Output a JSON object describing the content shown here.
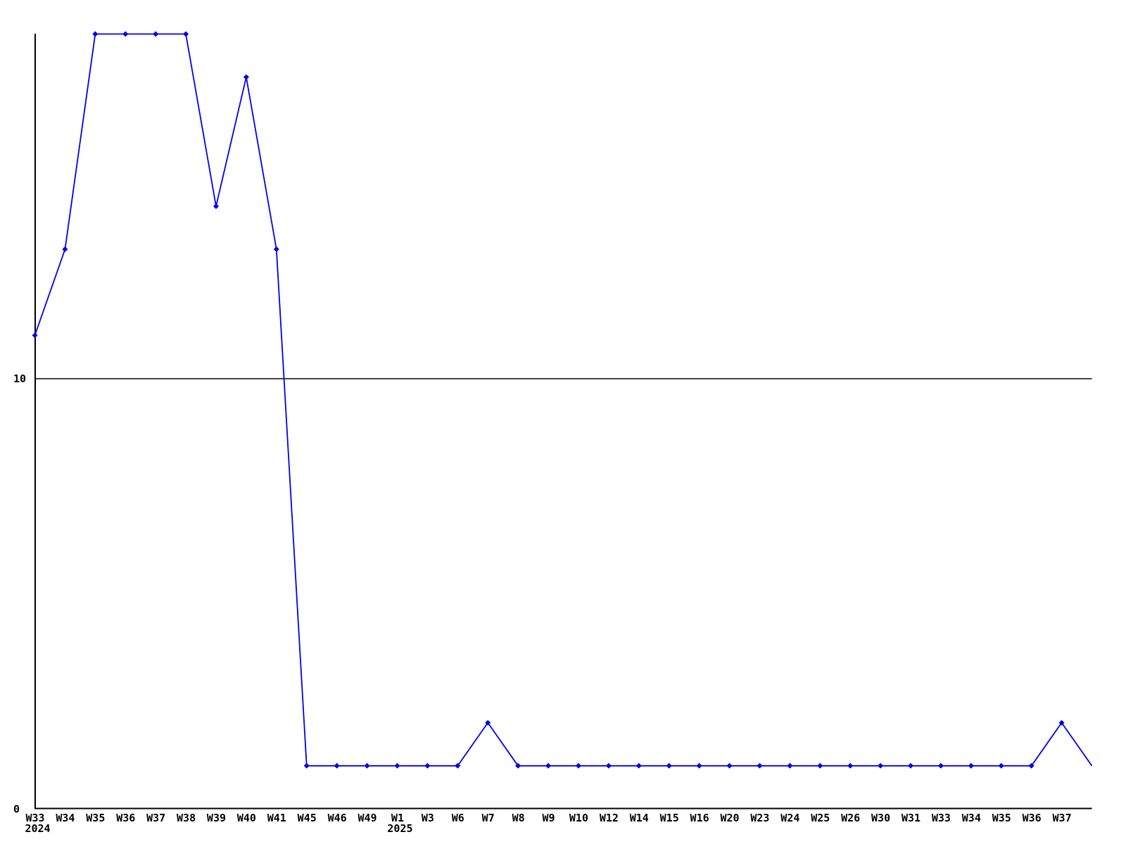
{
  "page": {
    "background_color": "#ffffff"
  },
  "chart_data": {
    "type": "line",
    "title": "",
    "xlabel": "",
    "ylabel": "",
    "ylim": [
      0,
      18.3
    ],
    "grid": false,
    "legend": "none",
    "line_color": "#0000ee",
    "axis_color": "#000000",
    "marker": "diamond",
    "yticks": [
      {
        "value": 0,
        "label": "0"
      },
      {
        "value": 10,
        "label": "10"
      }
    ],
    "reference_line_value": 10,
    "categories": [
      "W33",
      "W34",
      "W35",
      "W36",
      "W37",
      "W38",
      "W39",
      "W40",
      "W41",
      "W45",
      "W46",
      "W49",
      "W1",
      "W3",
      "W6",
      "W7",
      "W8",
      "W9",
      "W10",
      "W12",
      "W14",
      "W15",
      "W16",
      "W20",
      "W23",
      "W24",
      "W25",
      "W26",
      "W30",
      "W31",
      "W33",
      "W34",
      "W35",
      "W36",
      "W37",
      ""
    ],
    "year_sublabels": [
      {
        "index": 0,
        "text": "2024"
      },
      {
        "index": 12,
        "text": "2025"
      }
    ],
    "series": [
      {
        "name": "weekly-values",
        "values": [
          11,
          13,
          18,
          18,
          18,
          18,
          14,
          17,
          13,
          1,
          1,
          1,
          1,
          1,
          1,
          2,
          1,
          1,
          1,
          1,
          1,
          1,
          1,
          1,
          1,
          1,
          1,
          1,
          1,
          1,
          1,
          1,
          1,
          1,
          2,
          1
        ]
      }
    ]
  }
}
